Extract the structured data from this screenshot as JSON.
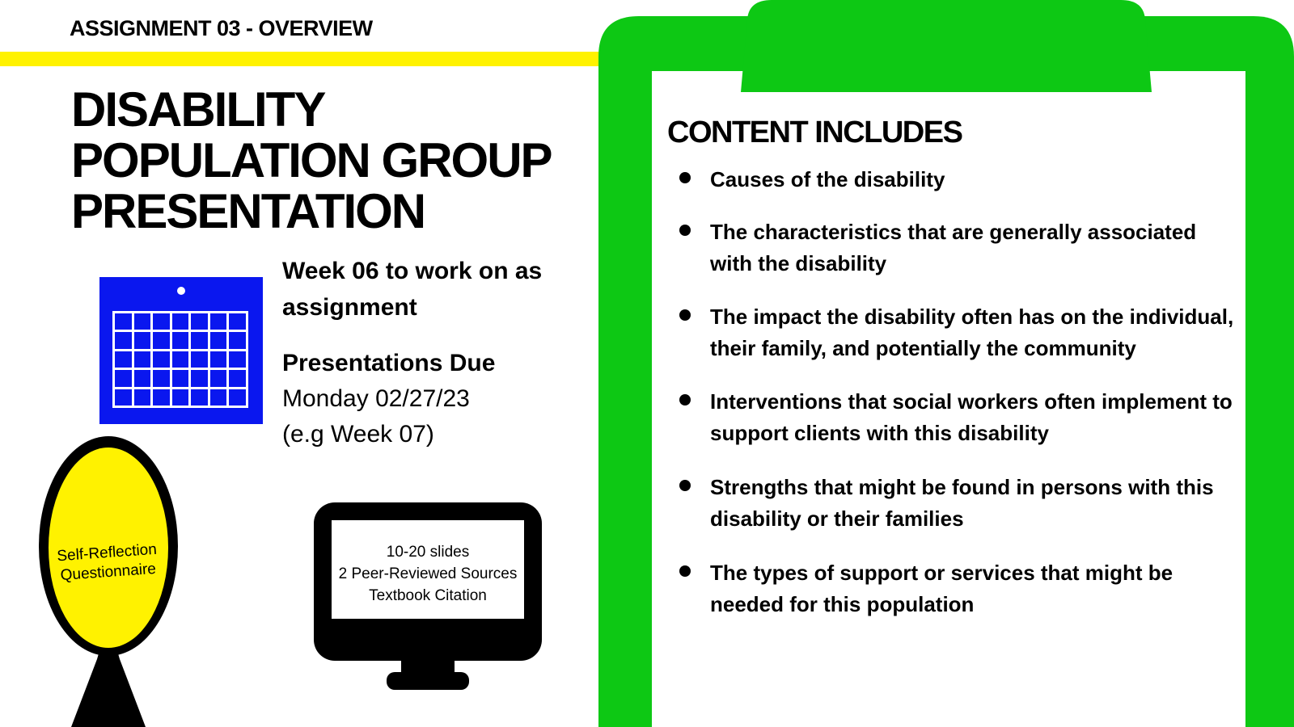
{
  "header": {
    "kicker": "ASSIGNMENT 03 - OVERVIEW"
  },
  "title": {
    "lines": [
      "DISABILITY",
      "POPULATION GROUP",
      "PRESENTATION"
    ]
  },
  "schedule": {
    "work_week": "Week 06 to work on as assignment",
    "due_title": "Presentations Due",
    "due_date": "Monday 02/27/23",
    "due_week": "(e.g Week 07)"
  },
  "mirror": {
    "label": "Self-Reflection Questionnaire"
  },
  "monitor": {
    "lines": [
      "10-20 slides",
      "2 Peer-Reviewed Sources",
      "Textbook Citation"
    ]
  },
  "content": {
    "title": "CONTENT INCLUDES",
    "items": [
      "Causes of the disability",
      "The characteristics that are generally associated with the disability",
      "The impact the disability often has on the individual, their family, and potentially the community",
      "Interventions that social workers often implement to support clients with this disability",
      "Strengths that might be found in persons with this disability or their families",
      "The types of support or services that might be needed for this population"
    ]
  },
  "colors": {
    "accent_yellow": "#fff200",
    "clipboard_green": "#0dc814",
    "calendar_blue": "#0a17ef"
  },
  "icons": [
    "calendar-icon",
    "hand-mirror-icon",
    "monitor-icon",
    "clipboard-icon"
  ]
}
